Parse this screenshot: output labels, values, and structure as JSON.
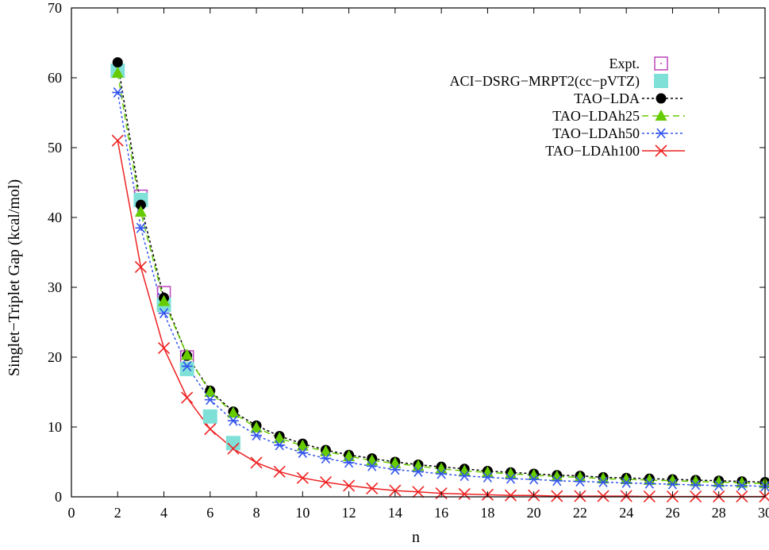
{
  "chart_data": {
    "type": "line",
    "title": "",
    "xlabel": "n",
    "ylabel": "Singlet−Triplet Gap (kcal/mol)",
    "xlim": [
      0,
      30
    ],
    "ylim": [
      0,
      70
    ],
    "xticks": [
      0,
      2,
      4,
      6,
      8,
      10,
      12,
      14,
      16,
      18,
      20,
      22,
      24,
      26,
      28,
      30
    ],
    "yticks": [
      0,
      10,
      20,
      30,
      40,
      50,
      60,
      70
    ],
    "grid": false,
    "legend_position": "top-right",
    "series": [
      {
        "name": "Expt.",
        "marker": "open-square-dot",
        "line": "none",
        "color": "#bb44bb",
        "x": [
          2,
          3,
          4,
          5
        ],
        "y": [
          61.0,
          43.0,
          29.2,
          20.0
        ]
      },
      {
        "name": "ACI−DSRG−MRPT2(cc−pVTZ)",
        "marker": "filled-square",
        "line": "none",
        "color": "#7fe0d8",
        "x": [
          2,
          3,
          4,
          5,
          6,
          7
        ],
        "y": [
          61.0,
          42.5,
          27.5,
          18.3,
          11.5,
          7.7
        ]
      },
      {
        "name": "TAO−LDA",
        "marker": "filled-circle",
        "line": "dotted",
        "color": "#000000",
        "x": [
          2,
          3,
          4,
          5,
          6,
          7,
          8,
          9,
          10,
          11,
          12,
          13,
          14,
          15,
          16,
          17,
          18,
          19,
          20,
          21,
          22,
          23,
          24,
          25,
          26,
          27,
          28,
          29,
          30
        ],
        "y": [
          62.2,
          41.8,
          28.5,
          20.2,
          15.2,
          12.2,
          10.2,
          8.7,
          7.6,
          6.7,
          6.0,
          5.5,
          5.0,
          4.6,
          4.3,
          4.0,
          3.7,
          3.5,
          3.3,
          3.1,
          3.0,
          2.8,
          2.7,
          2.6,
          2.5,
          2.4,
          2.3,
          2.2,
          2.1
        ]
      },
      {
        "name": "TAO−LDAh25",
        "marker": "filled-triangle",
        "line": "dashed",
        "color": "#66cc00",
        "x": [
          2,
          3,
          4,
          5,
          6,
          7,
          8,
          9,
          10,
          11,
          12,
          13,
          14,
          15,
          16,
          17,
          18,
          19,
          20,
          21,
          22,
          23,
          24,
          25,
          26,
          27,
          28,
          29,
          30
        ],
        "y": [
          60.7,
          40.8,
          28.0,
          20.3,
          15.0,
          12.0,
          9.9,
          8.4,
          7.3,
          6.5,
          5.8,
          5.2,
          4.8,
          4.4,
          4.0,
          3.7,
          3.5,
          3.3,
          3.1,
          2.9,
          2.8,
          2.6,
          2.5,
          2.4,
          2.3,
          2.2,
          2.1,
          2.0,
          1.9
        ]
      },
      {
        "name": "TAO−LDAh50",
        "marker": "asterisk",
        "line": "dotted",
        "color": "#3355ee",
        "x": [
          2,
          3,
          4,
          5,
          6,
          7,
          8,
          9,
          10,
          11,
          12,
          13,
          14,
          15,
          16,
          17,
          18,
          19,
          20,
          21,
          22,
          23,
          24,
          25,
          26,
          27,
          28,
          29,
          30
        ],
        "y": [
          57.9,
          38.5,
          26.3,
          18.7,
          13.9,
          10.9,
          8.8,
          7.4,
          6.3,
          5.5,
          4.9,
          4.4,
          3.9,
          3.6,
          3.3,
          3.0,
          2.8,
          2.6,
          2.5,
          2.3,
          2.2,
          2.1,
          2.0,
          1.9,
          1.8,
          1.7,
          1.6,
          1.6,
          1.5
        ]
      },
      {
        "name": "TAO−LDAh100",
        "marker": "cross",
        "line": "solid",
        "color": "#ee2222",
        "x": [
          2,
          3,
          4,
          5,
          6,
          7,
          8,
          9,
          10,
          11,
          12,
          13,
          14,
          15,
          16,
          17,
          18,
          19,
          20,
          21,
          22,
          23,
          24,
          25,
          26,
          27,
          28,
          29,
          30
        ],
        "y": [
          51.0,
          32.9,
          21.3,
          14.2,
          9.7,
          6.9,
          4.9,
          3.6,
          2.7,
          2.1,
          1.6,
          1.2,
          0.9,
          0.7,
          0.5,
          0.4,
          0.3,
          0.2,
          0.2,
          0.1,
          0.1,
          0.1,
          0.1,
          0.05,
          0.05,
          0.05,
          0.05,
          0.05,
          0.05
        ]
      }
    ]
  }
}
